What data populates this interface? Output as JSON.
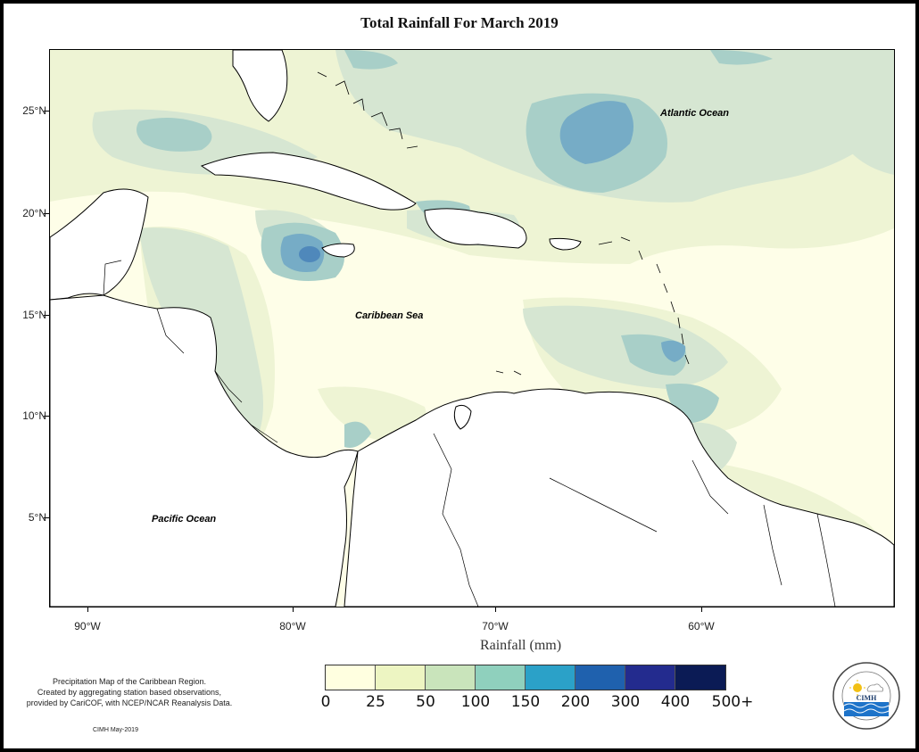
{
  "title": "Total Rainfall For March 2019",
  "axes": {
    "y_ticks": [
      "25°N",
      "20°N",
      "15°N",
      "10°N",
      "5°N"
    ],
    "x_ticks": [
      "90°W",
      "80°W",
      "70°W",
      "60°W"
    ],
    "x_title": "Rainfall (mm)"
  },
  "map_labels": {
    "atlantic": "Atlantic Ocean",
    "caribbean": "Caribbean Sea",
    "pacific": "Pacific Ocean"
  },
  "legend": {
    "labels": [
      "0",
      "25",
      "50",
      "100",
      "150",
      "200",
      "300",
      "400",
      "500+"
    ],
    "colors": [
      "#ffffe0",
      "#edf5c2",
      "#c9e4bb",
      "#8fd0bd",
      "#2ba1c8",
      "#1f61ae",
      "#232b8e",
      "#0b1b55"
    ]
  },
  "caption": {
    "line1": "Precipitation Map of the Caribbean Region.",
    "line2": "Created by aggregating station based observations,",
    "line3": "provided by CariCOF, with NCEP/NCAR Reanalysis Data.",
    "credit": "CIMH May-2019"
  },
  "logo": {
    "text": "CIMH",
    "ring_text": "Caribbean Institute for Meteorology and Hydrology"
  },
  "colors": {
    "land": "#ffffff",
    "low_rain": "#fefee8",
    "light_green": "#eef4d4",
    "pale_teal": "#d6e6d2",
    "teal": "#a8cfc8",
    "blue": "#76acc6",
    "dark_blue": "#4f88bb"
  }
}
